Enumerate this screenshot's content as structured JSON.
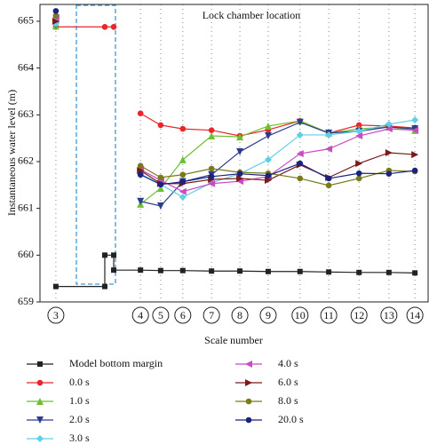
{
  "chart_data": {
    "type": "line",
    "annotation": "Lock chamber location",
    "y_label": "Instantaneous water level (m)",
    "x_label": "Scale number",
    "xlim": [
      0,
      100
    ],
    "ylim": [
      659,
      665.36
    ],
    "yticks": [
      659,
      660,
      661,
      662,
      663,
      664,
      665
    ],
    "xticks": [
      {
        "value": 4.1,
        "label": "3"
      },
      {
        "value": 25.9,
        "label": "4"
      },
      {
        "value": 31.1,
        "label": "5"
      },
      {
        "value": 36.8,
        "label": "6"
      },
      {
        "value": 44.2,
        "label": "7"
      },
      {
        "value": 51.5,
        "label": "8"
      },
      {
        "value": 58.8,
        "label": "9"
      },
      {
        "value": 67.0,
        "label": "10"
      },
      {
        "value": 74.4,
        "label": "11"
      },
      {
        "value": 82.2,
        "label": "12"
      },
      {
        "value": 89.9,
        "label": "13"
      },
      {
        "value": 96.6,
        "label": "14"
      }
    ],
    "grid": true,
    "series": [
      {
        "name": "Model bottom margin",
        "color": "#222222",
        "marker": "square",
        "x": [
          4.1,
          16.7,
          16.7,
          19.0,
          19.0,
          25.9,
          31.1,
          36.8,
          44.2,
          51.5,
          58.8,
          67.0,
          74.4,
          82.2,
          89.9,
          96.6
        ],
        "values": [
          659.33,
          659.33,
          660.0,
          660.0,
          659.68,
          659.68,
          659.67,
          659.67,
          659.66,
          659.66,
          659.65,
          659.65,
          659.64,
          659.63,
          659.63,
          659.62
        ]
      },
      {
        "name": "0.0 s",
        "color": "#e8262b",
        "marker": "circle",
        "x": [
          4.1,
          16.7,
          19.0,
          null,
          25.9,
          31.1,
          36.8,
          44.2,
          51.5,
          58.8,
          67.0,
          74.4,
          82.2,
          89.9,
          96.6
        ],
        "values": [
          664.88,
          664.88,
          664.88,
          null,
          663.03,
          662.78,
          662.7,
          662.67,
          662.55,
          662.68,
          662.87,
          662.61,
          662.78,
          662.76,
          662.72
        ]
      },
      {
        "name": "1.0 s",
        "color": "#6cbf2f",
        "marker": "triangle-up",
        "x": [
          4.1,
          null,
          25.9,
          31.1,
          36.8,
          44.2,
          51.5,
          58.8,
          67.0,
          74.4,
          82.2,
          89.9,
          96.6
        ],
        "values": [
          664.9,
          null,
          661.09,
          661.43,
          662.04,
          662.55,
          662.53,
          662.76,
          662.87,
          662.61,
          662.7,
          662.74,
          662.67
        ]
      },
      {
        "name": "2.0 s",
        "color": "#2b3c8f",
        "marker": "triangle-down",
        "x": [
          4.1,
          null,
          25.9,
          31.1,
          36.8,
          44.2,
          51.5,
          58.8,
          67.0,
          74.4,
          82.2,
          89.9,
          96.6
        ],
        "values": [
          664.92,
          null,
          661.15,
          661.05,
          661.57,
          661.72,
          662.21,
          662.55,
          662.84,
          662.61,
          662.65,
          662.74,
          662.7
        ]
      },
      {
        "name": "3.0 s",
        "color": "#5fcfe8",
        "marker": "diamond",
        "x": [
          4.1,
          null,
          25.9,
          31.1,
          36.8,
          44.2,
          51.5,
          58.8,
          67.0,
          74.4,
          82.2,
          89.9,
          96.6
        ],
        "values": [
          664.95,
          null,
          661.74,
          661.51,
          661.24,
          661.55,
          661.74,
          662.04,
          662.57,
          662.57,
          662.65,
          662.8,
          662.89
        ]
      },
      {
        "name": "4.0 s",
        "color": "#c94bc2",
        "marker": "triangle-left",
        "x": [
          4.1,
          null,
          25.9,
          31.1,
          36.8,
          44.2,
          51.5,
          58.8,
          67.0,
          74.4,
          82.2,
          89.9,
          96.6
        ],
        "values": [
          665.08,
          null,
          661.83,
          661.6,
          661.36,
          661.53,
          661.58,
          661.68,
          662.17,
          662.27,
          662.55,
          662.7,
          662.67
        ]
      },
      {
        "name": "6.0 s",
        "color": "#7a1a1a",
        "marker": "triangle-right",
        "x": [
          4.1,
          null,
          25.9,
          31.1,
          36.8,
          44.2,
          51.5,
          58.8,
          67.0,
          74.4,
          82.2,
          89.9,
          96.6
        ],
        "values": [
          665.0,
          null,
          661.81,
          661.53,
          661.53,
          661.62,
          661.64,
          661.6,
          661.93,
          661.66,
          661.96,
          662.19,
          662.15
        ]
      },
      {
        "name": "8.0 s",
        "color": "#7a7a1a",
        "marker": "circle",
        "x": [
          4.1,
          null,
          25.9,
          31.1,
          36.8,
          44.2,
          51.5,
          58.8,
          67.0,
          74.4,
          82.2,
          89.9,
          96.6
        ],
        "values": [
          665.12,
          null,
          661.91,
          661.66,
          661.72,
          661.85,
          661.77,
          661.75,
          661.64,
          661.49,
          661.64,
          661.81,
          661.79
        ]
      },
      {
        "name": "20.0 s",
        "color": "#1a237e",
        "marker": "circle",
        "x": [
          4.1,
          null,
          25.9,
          31.1,
          36.8,
          44.2,
          51.5,
          58.8,
          67.0,
          74.4,
          82.2,
          89.9,
          96.6
        ],
        "values": [
          665.22,
          null,
          661.72,
          661.51,
          661.57,
          661.68,
          661.74,
          661.7,
          661.96,
          661.64,
          661.75,
          661.74,
          661.81
        ]
      }
    ]
  }
}
